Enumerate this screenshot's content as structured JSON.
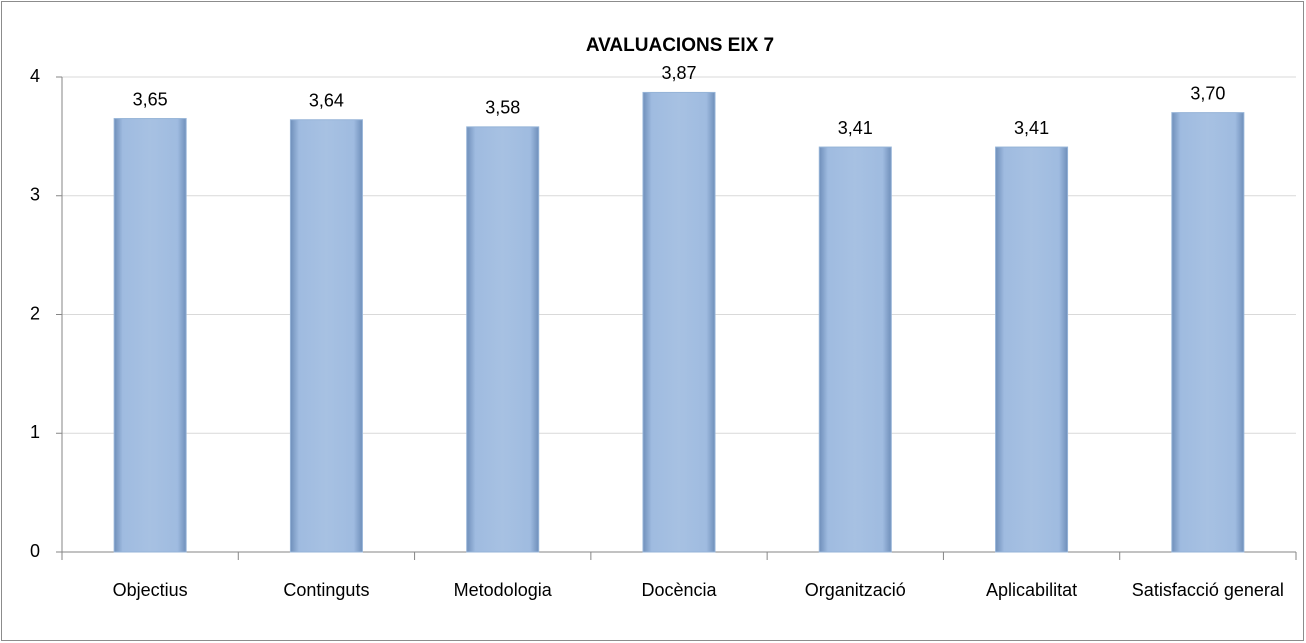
{
  "chart_data": {
    "type": "bar",
    "title": "AVALUACIONS EIX 7",
    "categories": [
      "Objectius",
      "Continguts",
      "Metodologia",
      "Docència",
      "Organització",
      "Aplicabilitat",
      "Satisfacció general"
    ],
    "values": [
      3.65,
      3.64,
      3.58,
      3.87,
      3.41,
      3.41,
      3.7
    ],
    "value_labels": [
      "3,65",
      "3,64",
      "3,58",
      "3,87",
      "3,41",
      "3,41",
      "3,70"
    ],
    "color": "#95b3d7",
    "ylim": [
      0,
      4
    ],
    "yticks": [
      0,
      1,
      2,
      3,
      4
    ],
    "grid": true
  }
}
